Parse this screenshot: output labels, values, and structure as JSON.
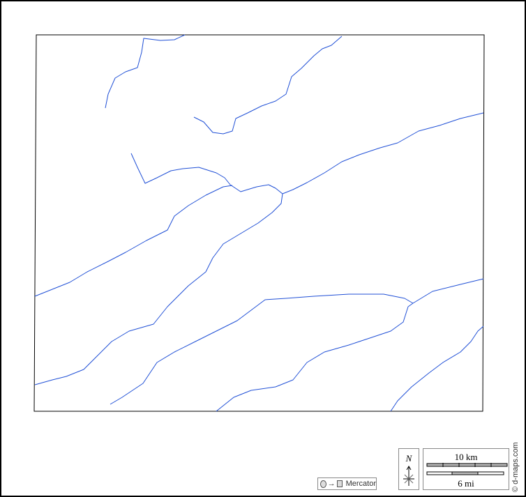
{
  "map": {
    "projection_label": "Mercator",
    "north_label": "N",
    "scale_km_label": "10 km",
    "scale_mi_label": "6 mi",
    "credit": "© d-maps.com",
    "colors": {
      "river": "#1f4fd6",
      "border": "#000000",
      "background": "#ffffff"
    },
    "icons": [
      "projection-circle-to-square-icon",
      "north-arrow-icon"
    ]
  }
}
